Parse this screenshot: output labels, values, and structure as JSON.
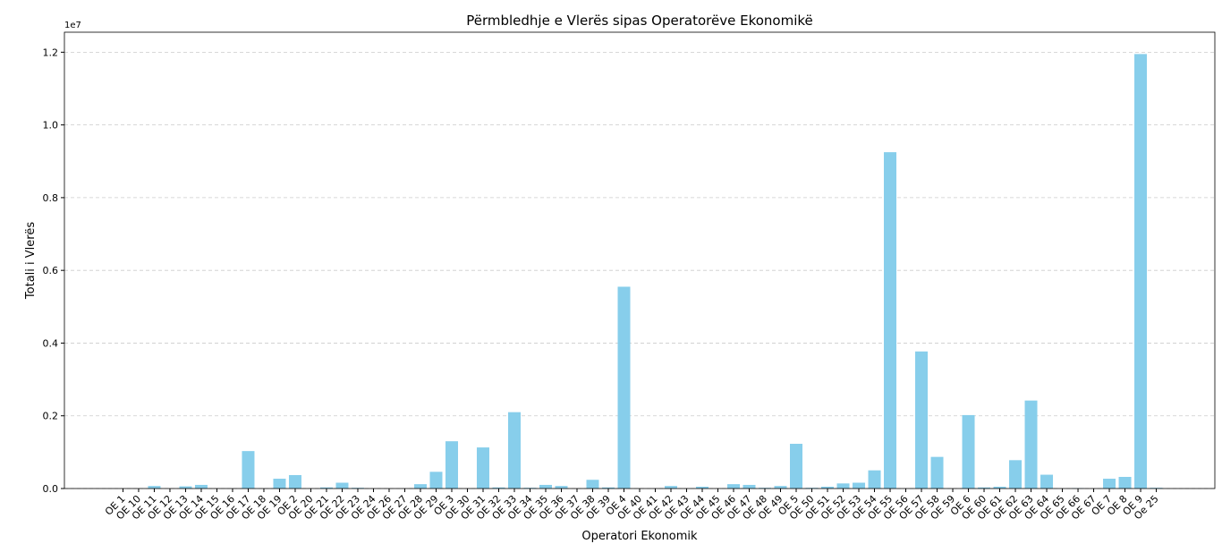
{
  "chart_data": {
    "type": "bar",
    "title": "Përmbledhje e Vlerës sipas Operatorëve Ekonomikë",
    "x_label": "Operatori Ekonomik",
    "y_label": "Totali i Vlerës",
    "y_offset_label": "1e7",
    "categories": [
      "OE 1",
      "OE 10",
      "OE 11",
      "OE 12",
      "OE 13",
      "OE 14",
      "OE 15",
      "OE 16",
      "OE 17",
      "OE 18",
      "OE 19",
      "OE 2",
      "OE 20",
      "OE 21",
      "OE 22",
      "OE 23",
      "OE 24",
      "OE 26",
      "OE 27",
      "OE 28",
      "OE 29",
      "OE 3",
      "OE 30",
      "OE 31",
      "OE 32",
      "OE 33",
      "OE 34",
      "OE 35",
      "OE 36",
      "OE 37",
      "OE 38",
      "OE 39",
      "OE 4",
      "OE 40",
      "OE 41",
      "OE 42",
      "OE 43",
      "OE 44",
      "OE 45",
      "OE 46",
      "OE 47",
      "OE 48",
      "OE 49",
      "OE 5",
      "OE 50",
      "OE 51",
      "OE 52",
      "OE 53",
      "OE 54",
      "OE 55",
      "OE 56",
      "OE 57",
      "OE 58",
      "OE 59",
      "OE 6",
      "OE 60",
      "OE 61",
      "OE 62",
      "OE 63",
      "OE 64",
      "OE 65",
      "OE 66",
      "OE 67",
      "OE 7",
      "OE 8",
      "OE 9",
      "Oe 25"
    ],
    "values": [
      0,
      0,
      70000,
      0,
      60000,
      100000,
      0,
      0,
      1030000,
      0,
      270000,
      370000,
      0,
      30000,
      160000,
      20000,
      0,
      0,
      0,
      120000,
      460000,
      1300000,
      0,
      1130000,
      30000,
      2100000,
      20000,
      100000,
      70000,
      0,
      240000,
      30000,
      5550000,
      0,
      0,
      70000,
      0,
      50000,
      0,
      120000,
      100000,
      20000,
      70000,
      1230000,
      20000,
      50000,
      140000,
      160000,
      500000,
      9250000,
      0,
      3770000,
      870000,
      0,
      2020000,
      30000,
      50000,
      780000,
      2420000,
      380000,
      0,
      10000,
      0,
      270000,
      320000,
      11950000,
      20000
    ],
    "color": "#87ceeb",
    "ylim": [
      0,
      12550000
    ],
    "yticks": [
      {
        "value": 0,
        "label": "0.0"
      },
      {
        "value": 2000000,
        "label": "0.2"
      },
      {
        "value": 4000000,
        "label": "0.4"
      },
      {
        "value": 6000000,
        "label": "0.6"
      },
      {
        "value": 8000000,
        "label": "0.8"
      },
      {
        "value": 10000000,
        "label": "1.0"
      },
      {
        "value": 12000000,
        "label": "1.2"
      }
    ],
    "grid": true
  }
}
